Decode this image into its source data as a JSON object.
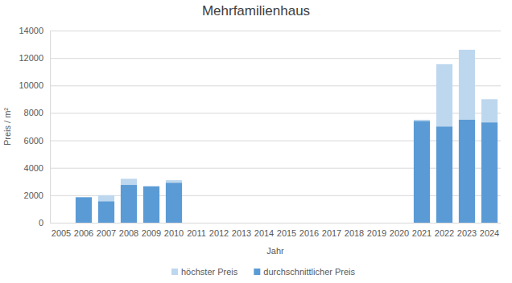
{
  "chart_data": {
    "type": "bar",
    "title": "Mehrfamilienhaus",
    "x_label": "Jahr",
    "y_label": "Preis / m²",
    "categories": [
      "2005",
      "2006",
      "2007",
      "2008",
      "2009",
      "2010",
      "2011",
      "2012",
      "2013",
      "2014",
      "2015",
      "2016",
      "2017",
      "2018",
      "2019",
      "2020",
      "2021",
      "2022",
      "2023",
      "2024"
    ],
    "series": [
      {
        "name": "höchster Preis",
        "color": "#bdd7ee",
        "values": [
          null,
          1850,
          2000,
          3200,
          2650,
          3100,
          null,
          null,
          null,
          null,
          null,
          null,
          null,
          null,
          null,
          null,
          7500,
          11550,
          12600,
          9000
        ]
      },
      {
        "name": "durchschnittlicher Preis",
        "color": "#5b9bd5",
        "values": [
          null,
          1850,
          1550,
          2750,
          2650,
          2900,
          null,
          null,
          null,
          null,
          null,
          null,
          null,
          null,
          null,
          null,
          7400,
          7000,
          7500,
          7300
        ]
      }
    ],
    "ylim": [
      0,
      14000
    ],
    "yticks": [
      0,
      2000,
      4000,
      6000,
      8000,
      10000,
      12000,
      14000
    ],
    "grid": true,
    "stacked": false,
    "legend": "bottom"
  }
}
